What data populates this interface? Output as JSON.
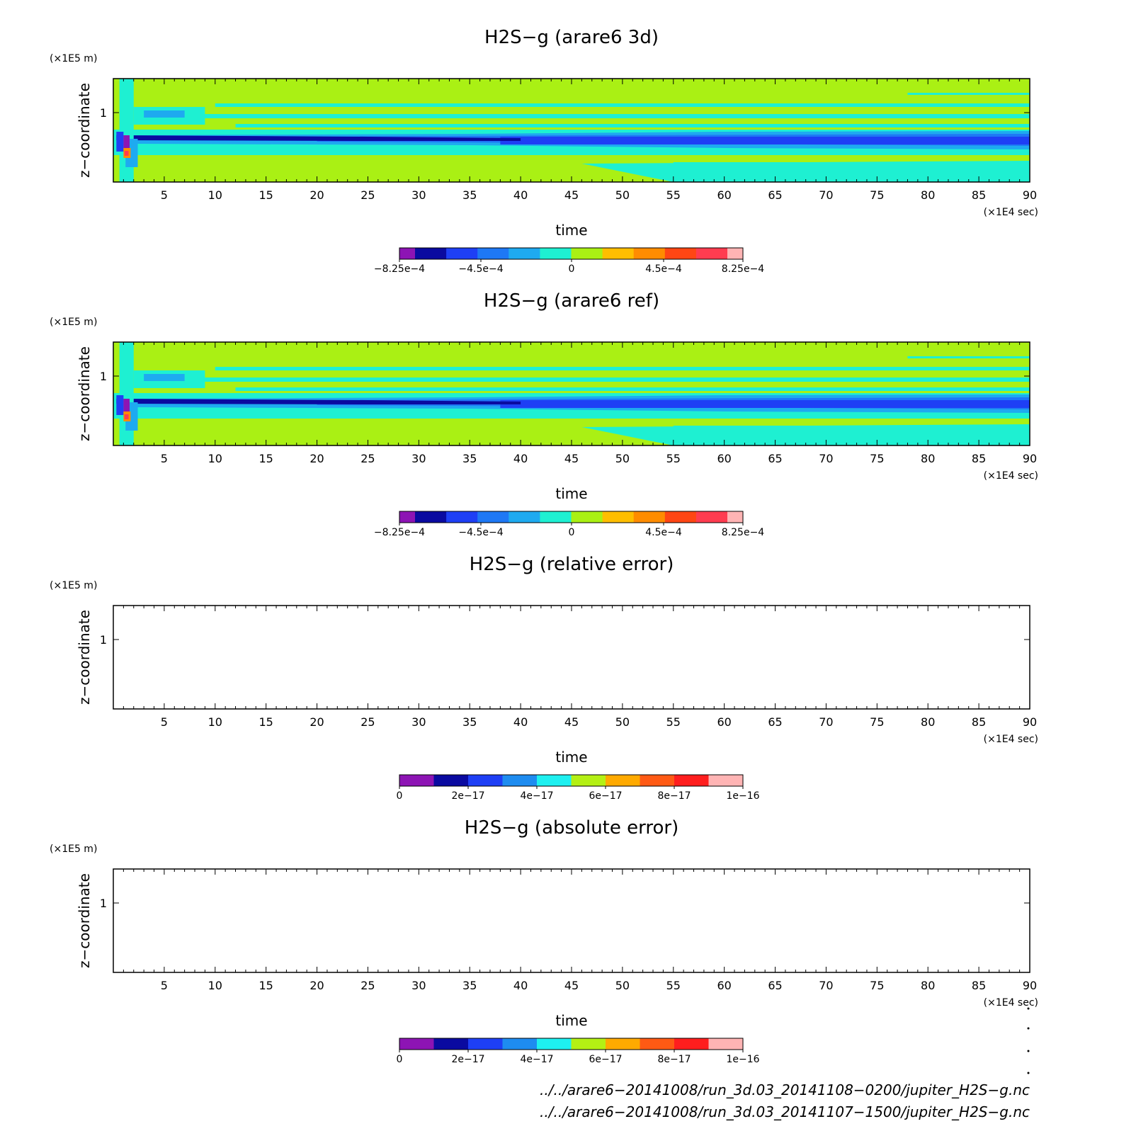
{
  "chart_data": [
    {
      "type": "heatmap",
      "title": "H2S−g (arare6 3d)",
      "xlabel": "time",
      "xunit": "(×1E4 sec)",
      "ylabel": "z−coordinate",
      "yunit": "(×1E5 m)",
      "xlim": [
        0,
        90
      ],
      "x_ticks": [
        "5",
        "10",
        "15",
        "20",
        "25",
        "30",
        "35",
        "40",
        "45",
        "50",
        "55",
        "60",
        "65",
        "70",
        "75",
        "80",
        "85",
        "90"
      ],
      "y_ticks": [
        "1"
      ],
      "field": "H2S-g mixing ratio anomaly; horizontal layered structure, strongly negative band near z≈0.85×1E5 m, positive spike near t≈1×1E4 sec",
      "colorbar": {
        "colors": [
          "#8d14b4",
          "#0a0aa0",
          "#1e3ff5",
          "#1e78f5",
          "#1eaaf0",
          "#1ef0d2",
          "#aaf014",
          "#ffbe00",
          "#ff8c00",
          "#ff4614",
          "#ff3c50",
          "#ffb4b4"
        ],
        "tick_labels": [
          "−8.25e−4",
          "−4.5e−4",
          "0",
          "4.5e−4",
          "8.25e−4"
        ]
      }
    },
    {
      "type": "heatmap",
      "title": "H2S−g (arare6 ref)",
      "xlabel": "time",
      "xunit": "(×1E4 sec)",
      "ylabel": "z−coordinate",
      "yunit": "(×1E5 m)",
      "xlim": [
        0,
        90
      ],
      "x_ticks": [
        "5",
        "10",
        "15",
        "20",
        "25",
        "30",
        "35",
        "40",
        "45",
        "50",
        "55",
        "60",
        "65",
        "70",
        "75",
        "80",
        "85",
        "90"
      ],
      "y_ticks": [
        "1"
      ],
      "field": "identical to arare6 3d",
      "colorbar": {
        "colors": [
          "#8d14b4",
          "#0a0aa0",
          "#1e3ff5",
          "#1e78f5",
          "#1eaaf0",
          "#1ef0d2",
          "#aaf014",
          "#ffbe00",
          "#ff8c00",
          "#ff4614",
          "#ff3c50",
          "#ffb4b4"
        ],
        "tick_labels": [
          "−8.25e−4",
          "−4.5e−4",
          "0",
          "4.5e−4",
          "8.25e−4"
        ]
      }
    },
    {
      "type": "heatmap",
      "title": "H2S−g (relative error)",
      "xlabel": "time",
      "xunit": "(×1E4 sec)",
      "ylabel": "z−coordinate",
      "yunit": "(×1E5 m)",
      "xlim": [
        0,
        90
      ],
      "x_ticks": [
        "5",
        "10",
        "15",
        "20",
        "25",
        "30",
        "35",
        "40",
        "45",
        "50",
        "55",
        "60",
        "65",
        "70",
        "75",
        "80",
        "85",
        "90"
      ],
      "y_ticks": [
        "1"
      ],
      "field": "empty (zero everywhere)",
      "colorbar": {
        "colors": [
          "#8d14b4",
          "#0a0aa0",
          "#1e3ff5",
          "#1e8cf0",
          "#1ef0f0",
          "#b4f014",
          "#ffaa00",
          "#ff5a14",
          "#ff1e1e",
          "#ffb4b4"
        ],
        "tick_labels": [
          "0",
          "2e−17",
          "4e−17",
          "6e−17",
          "8e−17",
          "1e−16"
        ]
      }
    },
    {
      "type": "heatmap",
      "title": "H2S−g (absolute error)",
      "xlabel": "time",
      "xunit": "(×1E4 sec)",
      "ylabel": "z−coordinate",
      "yunit": "(×1E5 m)",
      "xlim": [
        0,
        90
      ],
      "x_ticks": [
        "5",
        "10",
        "15",
        "20",
        "25",
        "30",
        "35",
        "40",
        "45",
        "50",
        "55",
        "60",
        "65",
        "70",
        "75",
        "80",
        "85",
        "90"
      ],
      "y_ticks": [
        "1"
      ],
      "field": "empty (zero everywhere)",
      "colorbar": {
        "colors": [
          "#8d14b4",
          "#0a0aa0",
          "#1e3ff5",
          "#1e8cf0",
          "#1ef0f0",
          "#b4f014",
          "#ffaa00",
          "#ff5a14",
          "#ff1e1e",
          "#ffb4b4"
        ],
        "tick_labels": [
          "0",
          "2e−17",
          "4e−17",
          "6e−17",
          "8e−17",
          "1e−16"
        ]
      }
    }
  ],
  "footer": {
    "line1": "../../arare6−20141008/run_3d.03_20141108−0200/jupiter_H2S−g.nc",
    "line2": "../../arare6−20141008/run_3d.03_20141107−1500/jupiter_H2S−g.nc"
  }
}
